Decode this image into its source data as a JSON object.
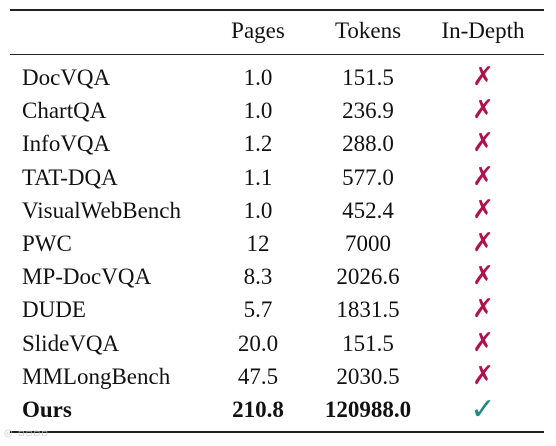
{
  "headers": {
    "name": "",
    "pages": "Pages",
    "tokens": "Tokens",
    "depth": "In-Depth"
  },
  "rows": [
    {
      "name": "DocVQA",
      "pages": "1.0",
      "tokens": "151.5",
      "mark": "✗",
      "bold": false
    },
    {
      "name": "ChartQA",
      "pages": "1.0",
      "tokens": "236.9",
      "mark": "✗",
      "bold": false
    },
    {
      "name": "InfoVQA",
      "pages": "1.2",
      "tokens": "288.0",
      "mark": "✗",
      "bold": false
    },
    {
      "name": "TAT-DQA",
      "pages": "1.1",
      "tokens": "577.0",
      "mark": "✗",
      "bold": false
    },
    {
      "name": "VisualWebBench",
      "pages": "1.0",
      "tokens": "452.4",
      "mark": "✗",
      "bold": false
    },
    {
      "name": "PWC",
      "pages": "12",
      "tokens": "7000",
      "mark": "✗",
      "bold": false
    },
    {
      "name": "MP-DocVQA",
      "pages": "8.3",
      "tokens": "2026.6",
      "mark": "✗",
      "bold": false
    },
    {
      "name": "DUDE",
      "pages": "5.7",
      "tokens": "1831.5",
      "mark": "✗",
      "bold": false
    },
    {
      "name": "SlideVQA",
      "pages": "20.0",
      "tokens": "151.5",
      "mark": "✗",
      "bold": false
    },
    {
      "name": "MMLongBench",
      "pages": "47.5",
      "tokens": "2030.5",
      "mark": "✗",
      "bold": false
    },
    {
      "name": "Ours",
      "pages": "210.8",
      "tokens": "120988.0",
      "mark": "✓",
      "bold": true
    }
  ],
  "colors": {
    "cross": "#b0124e",
    "check": "#1f8a80"
  },
  "icons": {
    "cross": "cross-mark-icon",
    "check": "check-mark-icon"
  }
}
